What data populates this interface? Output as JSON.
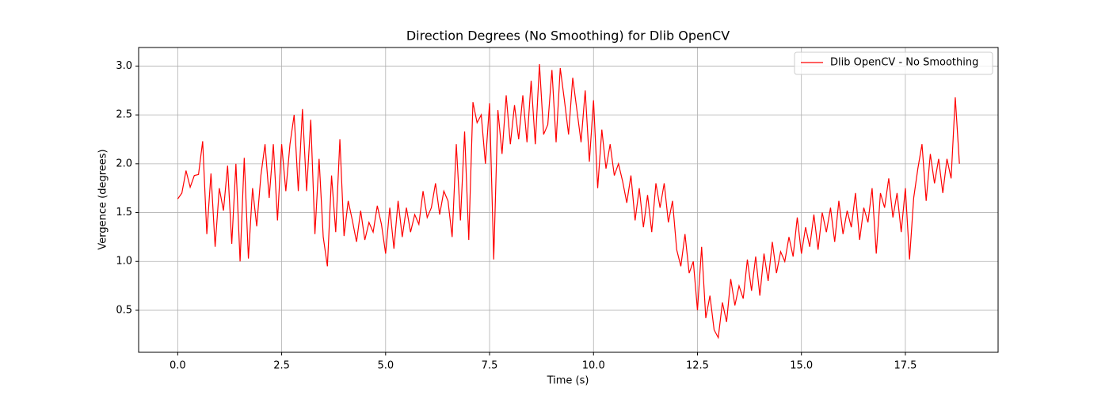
{
  "chart_data": {
    "type": "line",
    "title": "Direction Degrees (No Smoothing) for Dlib OpenCV",
    "x_label": "Time (s)",
    "y_label": "Vergence (degrees)",
    "x": [
      0.0,
      0.1,
      0.2,
      0.3,
      0.4,
      0.5,
      0.6,
      0.7,
      0.8,
      0.9,
      1.0,
      1.1,
      1.2,
      1.3,
      1.4,
      1.5,
      1.6,
      1.7,
      1.8,
      1.9,
      2.0,
      2.1,
      2.2,
      2.3,
      2.4,
      2.5,
      2.6,
      2.7,
      2.8,
      2.9,
      3.0,
      3.1,
      3.2,
      3.3,
      3.4,
      3.5,
      3.6,
      3.7,
      3.8,
      3.9,
      4.0,
      4.1,
      4.2,
      4.3,
      4.4,
      4.5,
      4.6,
      4.7,
      4.8,
      4.9,
      5.0,
      5.1,
      5.2,
      5.3,
      5.4,
      5.5,
      5.6,
      5.7,
      5.8,
      5.9,
      6.0,
      6.1,
      6.2,
      6.3,
      6.4,
      6.5,
      6.6,
      6.7,
      6.8,
      6.9,
      7.0,
      7.1,
      7.2,
      7.3,
      7.4,
      7.5,
      7.6,
      7.7,
      7.8,
      7.9,
      8.0,
      8.1,
      8.2,
      8.3,
      8.4,
      8.5,
      8.6,
      8.7,
      8.8,
      8.9,
      9.0,
      9.1,
      9.2,
      9.3,
      9.4,
      9.5,
      9.6,
      9.7,
      9.8,
      9.9,
      10.0,
      10.1,
      10.2,
      10.3,
      10.4,
      10.5,
      10.6,
      10.7,
      10.8,
      10.9,
      11.0,
      11.1,
      11.2,
      11.3,
      11.4,
      11.5,
      11.6,
      11.7,
      11.8,
      11.9,
      12.0,
      12.1,
      12.2,
      12.3,
      12.4,
      12.5,
      12.6,
      12.7,
      12.8,
      12.9,
      13.0,
      13.1,
      13.2,
      13.3,
      13.4,
      13.5,
      13.6,
      13.7,
      13.8,
      13.9,
      14.0,
      14.1,
      14.2,
      14.3,
      14.4,
      14.5,
      14.6,
      14.7,
      14.8,
      14.9,
      15.0,
      15.1,
      15.2,
      15.3,
      15.4,
      15.5,
      15.6,
      15.7,
      15.8,
      15.9,
      16.0,
      16.1,
      16.2,
      16.3,
      16.4,
      16.5,
      16.6,
      16.7,
      16.8,
      16.9,
      17.0,
      17.1,
      17.2,
      17.3,
      17.4,
      17.5,
      17.6,
      17.7,
      17.8,
      17.9,
      18.0,
      18.1,
      18.2,
      18.3,
      18.4,
      18.5,
      18.6,
      18.7,
      18.8
    ],
    "series": [
      {
        "name": "Dlib OpenCV - No Smoothing",
        "color": "#ff0000",
        "values": [
          1.64,
          1.7,
          1.93,
          1.76,
          1.88,
          1.89,
          2.23,
          1.28,
          1.9,
          1.15,
          1.75,
          1.52,
          1.98,
          1.18,
          2.0,
          1.0,
          2.06,
          1.03,
          1.75,
          1.36,
          1.88,
          2.2,
          1.65,
          2.2,
          1.42,
          2.2,
          1.72,
          2.2,
          2.5,
          1.72,
          2.56,
          1.72,
          2.45,
          1.28,
          2.05,
          1.25,
          0.95,
          1.88,
          1.3,
          2.25,
          1.26,
          1.62,
          1.42,
          1.2,
          1.52,
          1.22,
          1.4,
          1.3,
          1.57,
          1.38,
          1.08,
          1.55,
          1.13,
          1.62,
          1.25,
          1.55,
          1.3,
          1.48,
          1.38,
          1.72,
          1.45,
          1.55,
          1.8,
          1.48,
          1.72,
          1.62,
          1.25,
          2.2,
          1.42,
          2.33,
          1.22,
          2.63,
          2.42,
          2.5,
          2.0,
          2.62,
          1.02,
          2.55,
          2.1,
          2.7,
          2.2,
          2.6,
          2.25,
          2.7,
          2.22,
          2.85,
          2.2,
          3.02,
          2.3,
          2.4,
          2.96,
          2.22,
          2.98,
          2.65,
          2.3,
          2.88,
          2.55,
          2.22,
          2.75,
          2.02,
          2.65,
          1.75,
          2.35,
          1.95,
          2.2,
          1.88,
          2.0,
          1.82,
          1.6,
          1.88,
          1.42,
          1.75,
          1.35,
          1.68,
          1.3,
          1.8,
          1.55,
          1.8,
          1.4,
          1.62,
          1.12,
          0.95,
          1.28,
          0.88,
          1.0,
          0.5,
          1.15,
          0.42,
          0.65,
          0.3,
          0.22,
          0.58,
          0.38,
          0.82,
          0.55,
          0.75,
          0.62,
          1.02,
          0.7,
          1.05,
          0.65,
          1.08,
          0.8,
          1.2,
          0.88,
          1.1,
          1.0,
          1.25,
          1.05,
          1.45,
          1.08,
          1.35,
          1.15,
          1.48,
          1.12,
          1.5,
          1.3,
          1.55,
          1.2,
          1.62,
          1.28,
          1.52,
          1.35,
          1.7,
          1.22,
          1.55,
          1.4,
          1.75,
          1.08,
          1.7,
          1.55,
          1.85,
          1.45,
          1.7,
          1.3,
          1.75,
          1.02,
          1.65,
          1.95,
          2.2,
          1.62,
          2.1,
          1.8,
          2.05,
          1.7,
          2.05,
          1.85,
          2.68,
          2.0
        ]
      }
    ],
    "xlim": [
      -0.94,
      19.73
    ],
    "ylim": [
      0.07,
      3.19
    ],
    "xticks": [
      {
        "value": 0,
        "label": "0.0"
      },
      2.5,
      {
        "value": 5,
        "label": "5.0"
      },
      7.5,
      {
        "value": 10,
        "label": "10.0"
      },
      12.5,
      {
        "value": 15,
        "label": "15.0"
      },
      17.5
    ],
    "yticks": [
      0.5,
      {
        "value": 1,
        "label": "1.0"
      },
      1.5,
      {
        "value": 2,
        "label": "2.0"
      },
      2.5,
      {
        "value": 3,
        "label": "3.0"
      }
    ],
    "grid": true,
    "legend": "upper right"
  }
}
